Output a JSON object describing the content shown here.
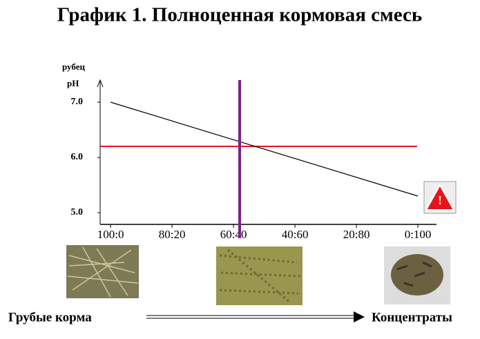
{
  "chart_data": {
    "type": "line",
    "title": "График 1. Полноценная кормовая смесь",
    "ylabel": [
      "рубец",
      "pH"
    ],
    "x": [
      100,
      0
    ],
    "series": [
      {
        "color": "#000000",
        "values": [
          7.0,
          5.3
        ]
      }
    ],
    "hlines": [
      {
        "value": 6.2,
        "color": "#e8141b"
      }
    ],
    "vlines": [
      {
        "value": 58,
        "color": "#7d1f8a"
      }
    ],
    "xlim": [
      103.4,
      -5.6
    ],
    "xticks": [
      {
        "value": 100,
        "label": "100:0"
      },
      {
        "value": 80,
        "label": "80:20"
      },
      {
        "value": 60,
        "label": "60:40"
      },
      {
        "value": 40,
        "label": "40:60"
      },
      {
        "value": 20,
        "label": "20:80"
      },
      {
        "value": 0,
        "label": "0:100"
      }
    ],
    "ylim": [
      4.8,
      7.4
    ],
    "yticks": [
      {
        "value": 7,
        "label": "7.0"
      },
      {
        "value": 6,
        "label": "6.0"
      },
      {
        "value": 5,
        "label": "5.0"
      }
    ],
    "left_label": "Грубые корма",
    "right_label": "Концентраты"
  }
}
